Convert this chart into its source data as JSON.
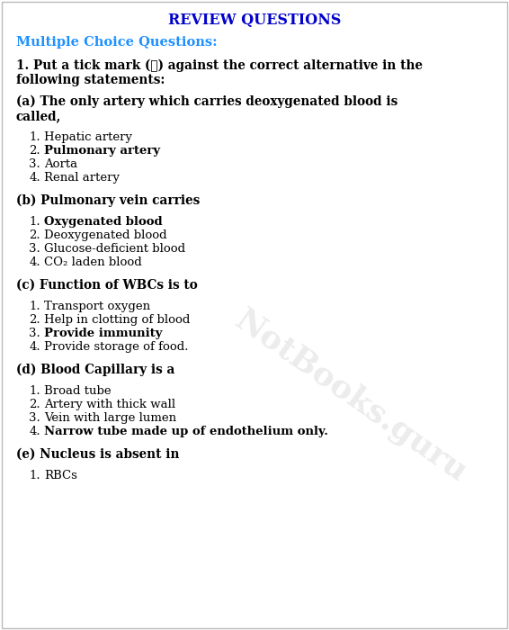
{
  "title": "REVIEW QUESTIONS",
  "title_color": "#0000CC",
  "section_header": "Multiple Choice Questions:",
  "section_header_color": "#1E90FF",
  "bg_color": "#FFFFFF",
  "content": [
    {
      "type": "qnum",
      "lines": [
        "1. Put a tick mark (✓) against the correct alternative in the",
        "following statements:"
      ]
    },
    {
      "type": "sub",
      "lines": [
        "(a) The only artery which carries deoxygenated blood is",
        "called,"
      ]
    },
    {
      "type": "options",
      "items": [
        {
          "num": "1.",
          "text": "Hepatic artery",
          "bold": false
        },
        {
          "num": "2.",
          "text": "Pulmonary artery",
          "bold": true
        },
        {
          "num": "3.",
          "text": "Aorta",
          "bold": false
        },
        {
          "num": "4.",
          "text": "Renal artery",
          "bold": false
        }
      ]
    },
    {
      "type": "sub",
      "lines": [
        "(b) Pulmonary vein carries"
      ]
    },
    {
      "type": "options",
      "items": [
        {
          "num": "1.",
          "text": "Oxygenated blood",
          "bold": true
        },
        {
          "num": "2.",
          "text": "Deoxygenated blood",
          "bold": false
        },
        {
          "num": "3.",
          "text": "Glucose-deficient blood",
          "bold": false
        },
        {
          "num": "4.",
          "text": "CO₂ laden blood",
          "bold": false
        }
      ]
    },
    {
      "type": "sub",
      "lines": [
        "(c) Function of WBCs is to"
      ]
    },
    {
      "type": "options",
      "items": [
        {
          "num": "1.",
          "text": "Transport oxygen",
          "bold": false
        },
        {
          "num": "2.",
          "text": "Help in clotting of blood",
          "bold": false
        },
        {
          "num": "3.",
          "text": "Provide immunity",
          "bold": true
        },
        {
          "num": "4.",
          "text": "Provide storage of food.",
          "bold": false
        }
      ]
    },
    {
      "type": "sub",
      "lines": [
        "(d) Blood Capillary is a"
      ]
    },
    {
      "type": "options",
      "items": [
        {
          "num": "1.",
          "text": "Broad tube",
          "bold": false
        },
        {
          "num": "2.",
          "text": "Artery with thick wall",
          "bold": false
        },
        {
          "num": "3.",
          "text": "Vein with large lumen",
          "bold": false
        },
        {
          "num": "4.",
          "text": "Narrow tube made up of endothelium only.",
          "bold": true
        }
      ]
    },
    {
      "type": "sub",
      "lines": [
        "(e) Nucleus is absent in"
      ]
    },
    {
      "type": "options",
      "items": [
        {
          "num": "1.",
          "text": "RBCs",
          "bold": false
        }
      ]
    }
  ]
}
